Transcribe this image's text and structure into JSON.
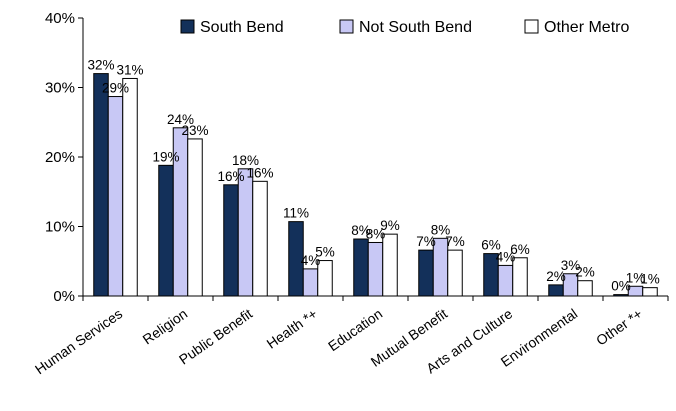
{
  "chart_data": {
    "type": "bar",
    "categories": [
      "Human Services",
      "Religion",
      "Public Benefit",
      "Health *+",
      "Education",
      "Mutual Benefit",
      "Arts and Culture",
      "Environmental",
      "Other *+"
    ],
    "series": [
      {
        "name": "South Bend",
        "color": "#13305a",
        "values": [
          32,
          18.8,
          16,
          10.7,
          8.2,
          6.6,
          6.1,
          1.6,
          0.2
        ],
        "labels": [
          "32%",
          "19%",
          "16%",
          "11%",
          "8%",
          "7%",
          "6%",
          "2%",
          "0%"
        ]
      },
      {
        "name": "Not South Bend",
        "color": "#c8c8f5",
        "values": [
          28.7,
          24.2,
          18.3,
          3.9,
          7.7,
          8.3,
          4.4,
          3.2,
          1.4
        ],
        "labels": [
          "29%",
          "24%",
          "18%",
          "4%",
          "8%",
          "8%",
          "4%",
          "3%",
          "1%"
        ]
      },
      {
        "name": "Other Metro",
        "color": "#ffffff",
        "values": [
          31.3,
          22.6,
          16.5,
          5.1,
          8.9,
          6.6,
          5.5,
          2.2,
          1.2
        ],
        "labels": [
          "31%",
          "23%",
          "16%",
          "5%",
          "9%",
          "7%",
          "6%",
          "2%",
          "1%"
        ]
      }
    ],
    "yticks": [
      "0%",
      "10%",
      "20%",
      "30%",
      "40%"
    ],
    "ylim": [
      0,
      40
    ],
    "legend_position": "top-right",
    "grid": false
  }
}
